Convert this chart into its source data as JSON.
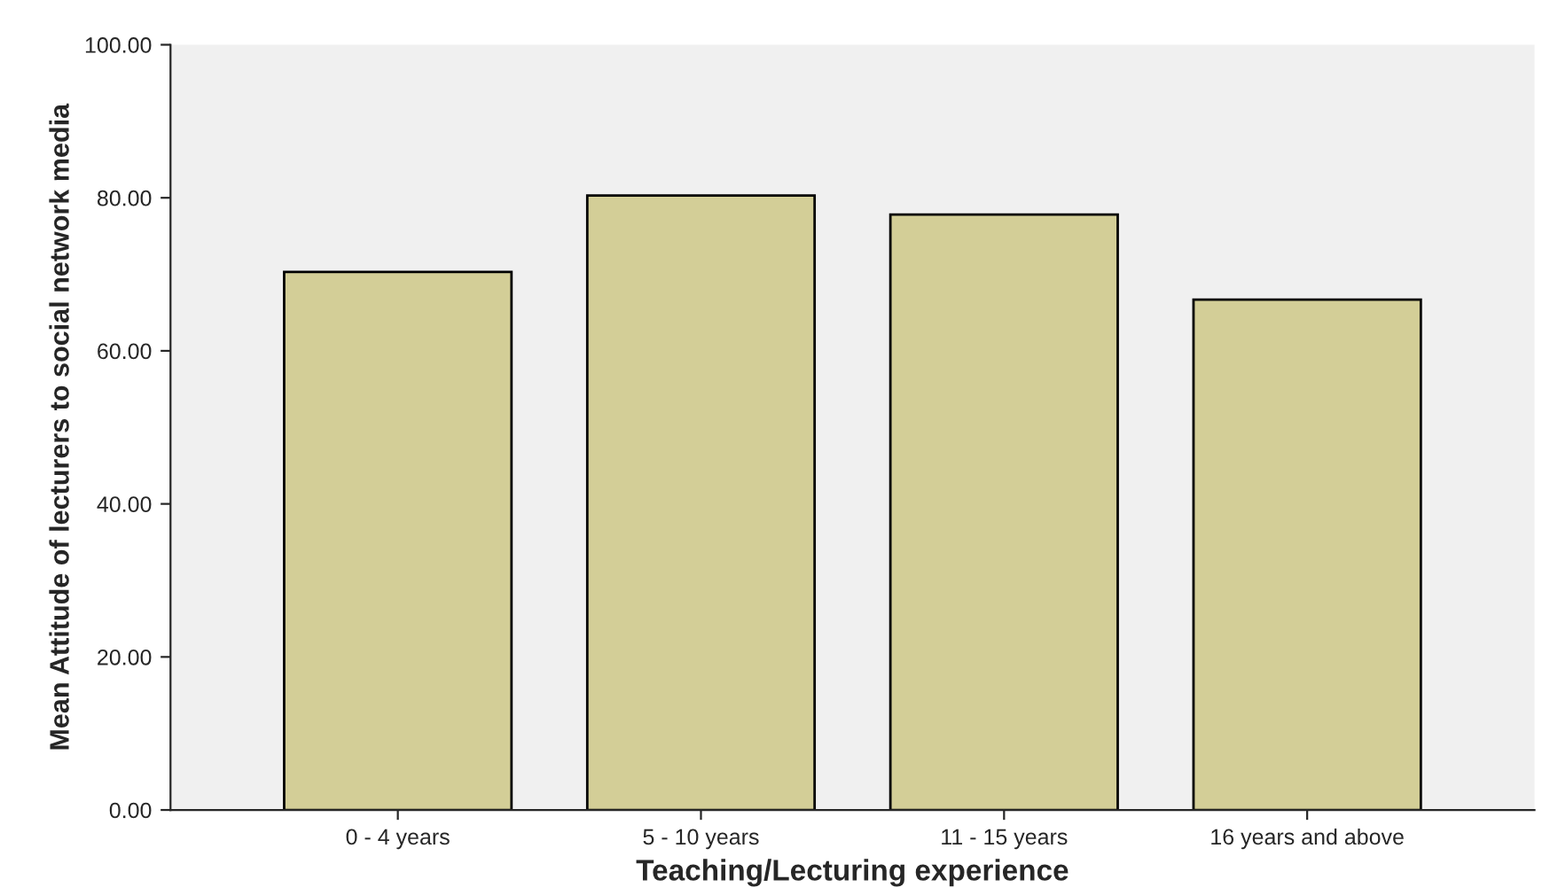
{
  "chart_data": {
    "type": "bar",
    "xlabel": "Teaching/Lecturing experience",
    "ylabel": "Mean Attitude of lecturers to social network media",
    "categories": [
      "0 - 4 years",
      "5 - 10 years",
      "11 - 15 years",
      "16 years and above"
    ],
    "values": [
      70.3,
      80.3,
      77.8,
      66.7
    ],
    "color": "#d3ce97",
    "ylim": [
      0,
      100
    ],
    "yticks": [
      {
        "value": 0,
        "label": "0.00"
      },
      {
        "value": 20,
        "label": "20.00"
      },
      {
        "value": 40,
        "label": "40.00"
      },
      {
        "value": 60,
        "label": "60.00"
      },
      {
        "value": 80,
        "label": "80.00"
      },
      {
        "value": 100,
        "label": "100.00"
      }
    ],
    "grid": false,
    "legend": false
  }
}
